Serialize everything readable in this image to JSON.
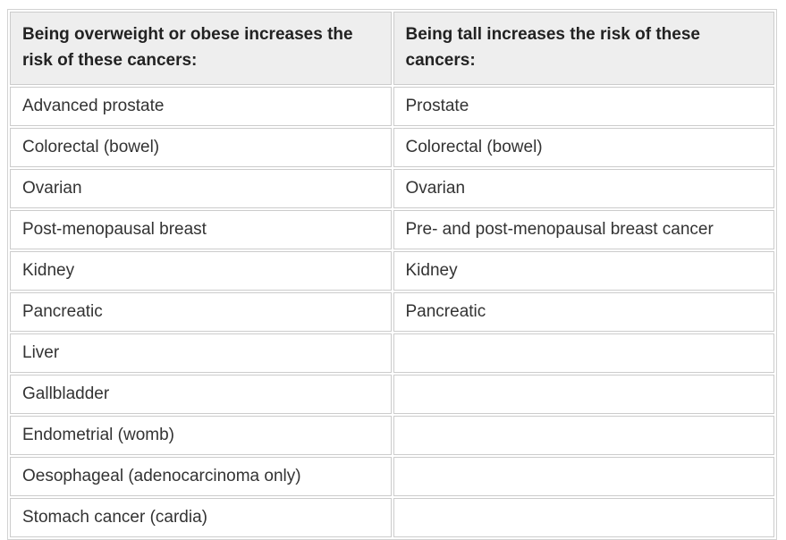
{
  "table": {
    "name": "cancer-risk-table",
    "columns": [
      {
        "header": "Being overweight or obese increases the risk of these cancers:"
      },
      {
        "header": "Being tall increases the risk of these cancers:"
      }
    ],
    "rows": [
      {
        "overweight": "Advanced prostate",
        "tall": "Prostate"
      },
      {
        "overweight": "Colorectal (bowel)",
        "tall": "Colorectal (bowel)"
      },
      {
        "overweight": "Ovarian",
        "tall": "Ovarian"
      },
      {
        "overweight": "Post-menopausal breast",
        "tall": "Pre- and post-menopausal breast cancer"
      },
      {
        "overweight": "Kidney",
        "tall": "Kidney"
      },
      {
        "overweight": "Pancreatic",
        "tall": "Pancreatic"
      },
      {
        "overweight": "Liver",
        "tall": ""
      },
      {
        "overweight": "Gallbladder",
        "tall": ""
      },
      {
        "overweight": "Endometrial (womb)",
        "tall": ""
      },
      {
        "overweight": "Oesophageal (adenocarcinoma only)",
        "tall": ""
      },
      {
        "overweight": "Stomach cancer (cardia)",
        "tall": ""
      }
    ],
    "colors": {
      "header_bg": "#eeeeee",
      "cell_border": "#cccccc",
      "header_text": "#222222",
      "body_text": "#333333",
      "background": "#ffffff"
    }
  }
}
